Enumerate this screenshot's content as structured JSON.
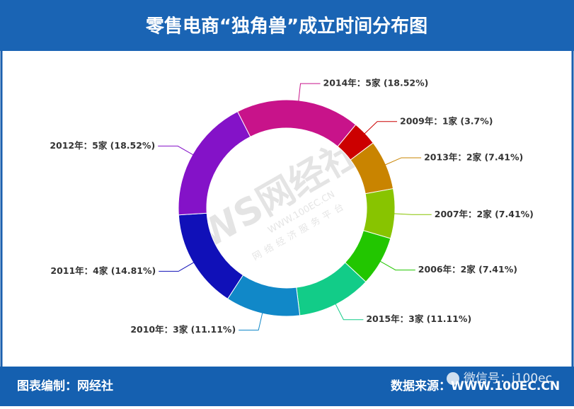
{
  "chart_data": {
    "type": "donut",
    "title": "零售电商“独角兽”成立时间分布图",
    "labels": [
      "2014年：5家 (18.52%)",
      "2009年：1家 (3.7%)",
      "2013年：2家 (7.41%)",
      "2007年：2家 (7.41%)",
      "2006年：2家 (7.41%)",
      "2015年：3家 (11.11%)",
      "2010年：3家 (11.11%)",
      "2011年：4家 (14.81%)",
      "2012年：5家 (18.52%)"
    ],
    "values": [
      5,
      1,
      2,
      2,
      2,
      3,
      3,
      4,
      5
    ],
    "colors": [
      "#c8138a",
      "#cc0000",
      "#c98400",
      "#88c400",
      "#22c600",
      "#12cc88",
      "#1188c8",
      "#1010b8",
      "#8412c8"
    ]
  },
  "footer": {
    "left": "图表编制：网经社",
    "right": "数据来源：WWW.100EC.CN"
  },
  "watermark": {
    "logo": "WS网经社",
    "site": "WWW.100EC.CN",
    "tagline": "网络经济服务平台",
    "wechat": "微信号：i100ec"
  }
}
